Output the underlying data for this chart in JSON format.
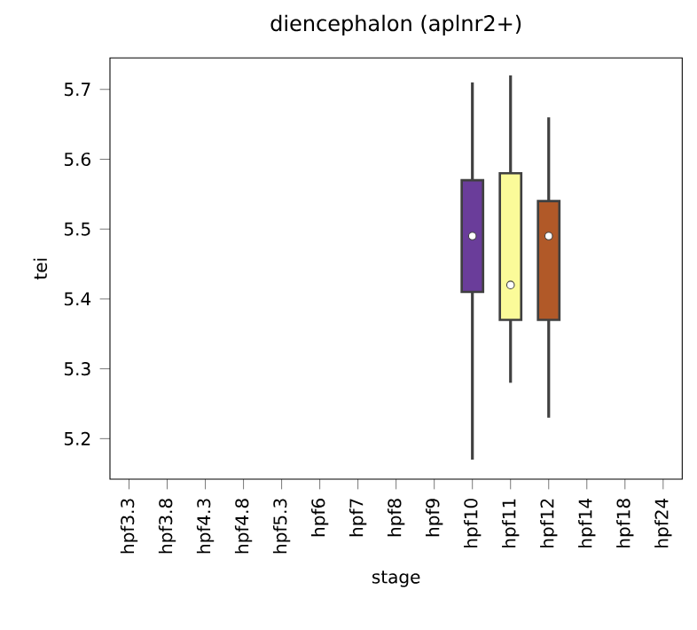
{
  "chart_data": {
    "type": "box",
    "title": "diencephalon (aplnr2+)",
    "xlabel": "stage",
    "ylabel": "tei",
    "categories": [
      "hpf3.3",
      "hpf3.8",
      "hpf4.3",
      "hpf4.8",
      "hpf5.3",
      "hpf6",
      "hpf7",
      "hpf8",
      "hpf9",
      "hpf10",
      "hpf11",
      "hpf12",
      "hpf14",
      "hpf18",
      "hpf24"
    ],
    "boxes": [
      null,
      null,
      null,
      null,
      null,
      null,
      null,
      null,
      null,
      {
        "low": 5.17,
        "q1": 5.41,
        "median": 5.49,
        "q3": 5.57,
        "high": 5.71
      },
      {
        "low": 5.28,
        "q1": 5.37,
        "median": 5.42,
        "q3": 5.58,
        "high": 5.72
      },
      {
        "low": 5.23,
        "q1": 5.37,
        "median": 5.49,
        "q3": 5.54,
        "high": 5.66
      },
      null,
      null,
      null
    ],
    "colors": [
      null,
      null,
      null,
      null,
      null,
      null,
      null,
      null,
      null,
      "#6a3d9a",
      "#fbfb99",
      "#b15928",
      null,
      null,
      null
    ],
    "ylim": [
      5.142,
      5.745
    ],
    "yticks": [
      5.2,
      5.3,
      5.4,
      5.5,
      5.6,
      5.7
    ]
  }
}
